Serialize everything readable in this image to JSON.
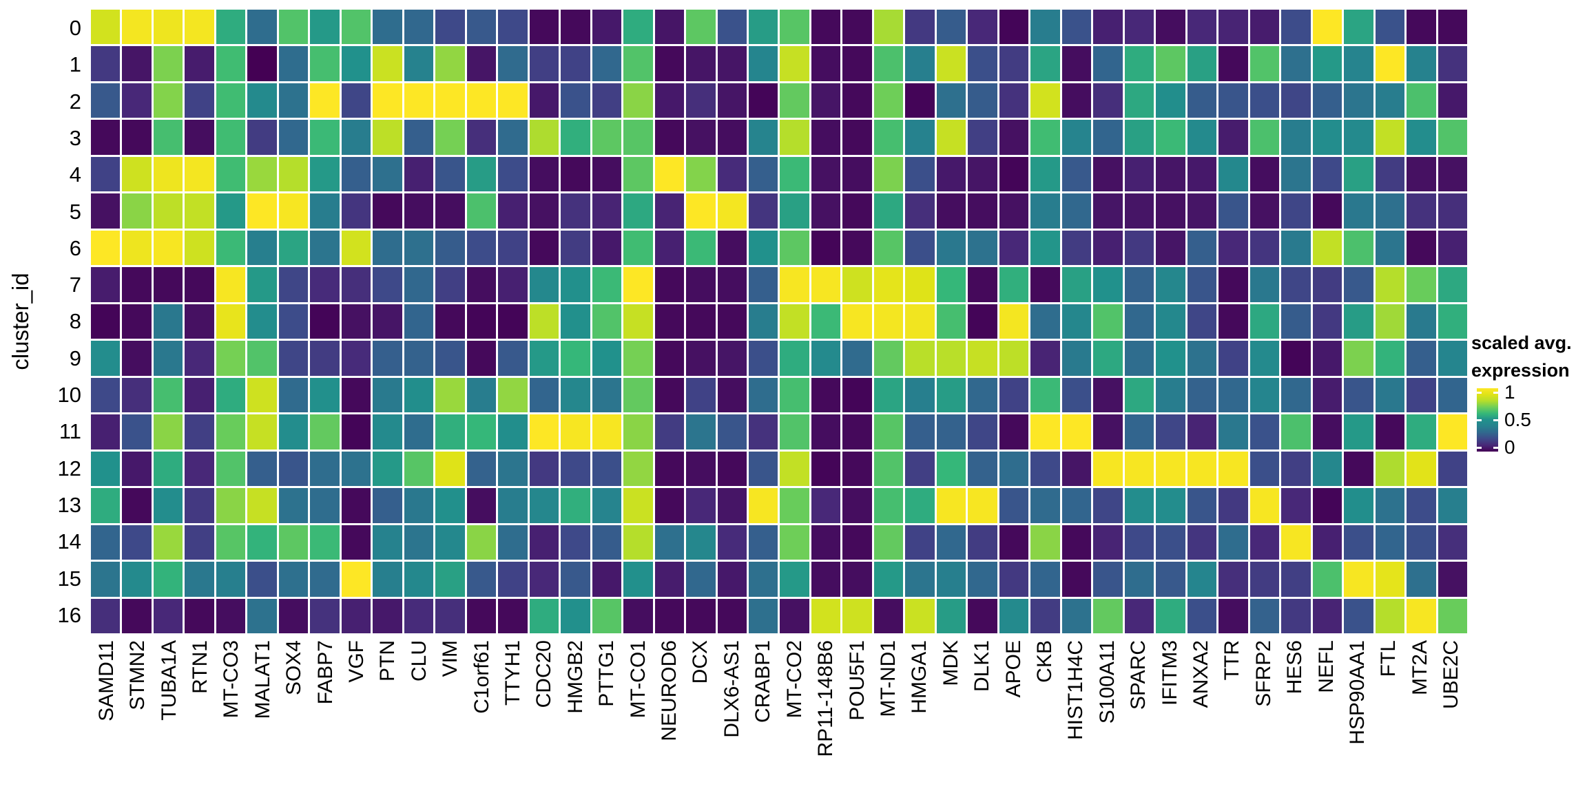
{
  "y_axis": {
    "title": "cluster_id",
    "ticks": [
      "0",
      "1",
      "2",
      "3",
      "4",
      "5",
      "6",
      "7",
      "8",
      "9",
      "10",
      "11",
      "12",
      "13",
      "14",
      "15",
      "16"
    ]
  },
  "x_axis": {
    "ticks": [
      "SAMD11",
      "STMN2",
      "TUBA1A",
      "RTN1",
      "MT-CO3",
      "MALAT1",
      "SOX4",
      "FABP7",
      "VGF",
      "PTN",
      "CLU",
      "VIM",
      "C1orf61",
      "TTYH1",
      "CDC20",
      "HMGB2",
      "PTTG1",
      "MT-CO1",
      "NEUROD6",
      "DCX",
      "DLX6-AS1",
      "CRABP1",
      "MT-CO2",
      "RP11-148B6",
      "POU5F1",
      "MT-ND1",
      "HMGA1",
      "MDK",
      "DLK1",
      "APOE",
      "CKB",
      "HIST1H4C",
      "S100A11",
      "SPARC",
      "IFITM3",
      "ANXA2",
      "TTR",
      "SFRP2",
      "HES6",
      "NEFL",
      "HSP90AA1",
      "FTL",
      "MT2A",
      "UBE2C"
    ]
  },
  "legend": {
    "title_line1": "scaled avg.",
    "title_line2": "expression",
    "ticks": [
      "1",
      "0.5",
      "0"
    ],
    "tick_positions": [
      0.06,
      0.5,
      0.94
    ]
  },
  "colors": {
    "background": "#ffffff",
    "text": "#000000",
    "gridline": "#ffffff",
    "viridis_stops": [
      "#440154",
      "#482878",
      "#3e4989",
      "#31688e",
      "#26828e",
      "#21918c",
      "#35b779",
      "#6ece58",
      "#b5de2b",
      "#dfe318",
      "#fde725"
    ]
  },
  "chart_data": {
    "type": "heatmap",
    "title": "",
    "xlabel": "",
    "ylabel": "cluster_id",
    "value_name": "scaled avg. expression",
    "colormap": "viridis",
    "vmin": 0,
    "vmax": 1,
    "x": [
      "SAMD11",
      "STMN2",
      "TUBA1A",
      "RTN1",
      "MT-CO3",
      "MALAT1",
      "SOX4",
      "FABP7",
      "VGF",
      "PTN",
      "CLU",
      "VIM",
      "C1orf61",
      "TTYH1",
      "CDC20",
      "HMGB2",
      "PTTG1",
      "MT-CO1",
      "NEUROD6",
      "DCX",
      "DLX6-AS1",
      "CRABP1",
      "MT-CO2",
      "RP11-148B6",
      "POU5F1",
      "MT-ND1",
      "HMGA1",
      "MDK",
      "DLK1",
      "APOE",
      "CKB",
      "HIST1H4C",
      "S100A11",
      "SPARC",
      "IFITM3",
      "ANXA2",
      "TTR",
      "SFRP2",
      "HES6",
      "NEFL",
      "HSP90AA1",
      "FTL",
      "MT2A",
      "UBE2C"
    ],
    "y": [
      "0",
      "1",
      "2",
      "3",
      "4",
      "5",
      "6",
      "7",
      "8",
      "9",
      "10",
      "11",
      "12",
      "13",
      "14",
      "15",
      "16"
    ],
    "values": [
      [
        0.87,
        0.97,
        0.95,
        0.97,
        0.57,
        0.32,
        0.65,
        0.52,
        0.65,
        0.32,
        0.3,
        0.2,
        0.25,
        0.2,
        0.02,
        0.02,
        0.06,
        0.57,
        0.05,
        0.67,
        0.23,
        0.53,
        0.66,
        0.02,
        0.02,
        0.78,
        0.15,
        0.26,
        0.1,
        0.01,
        0.38,
        0.23,
        0.08,
        0.1,
        0.03,
        0.1,
        0.09,
        0.07,
        0.21,
        1.0,
        0.55,
        0.23,
        0.02,
        0.02
      ],
      [
        0.15,
        0.05,
        0.72,
        0.07,
        0.62,
        0.0,
        0.32,
        0.63,
        0.5,
        0.85,
        0.4,
        0.75,
        0.05,
        0.31,
        0.17,
        0.18,
        0.3,
        0.65,
        0.02,
        0.05,
        0.05,
        0.42,
        0.84,
        0.03,
        0.02,
        0.64,
        0.39,
        0.85,
        0.22,
        0.16,
        0.55,
        0.03,
        0.29,
        0.57,
        0.67,
        0.54,
        0.02,
        0.65,
        0.33,
        0.52,
        0.41,
        1.0,
        0.4,
        0.13
      ],
      [
        0.25,
        0.1,
        0.73,
        0.18,
        0.62,
        0.45,
        0.34,
        1.0,
        0.19,
        1.0,
        1.0,
        1.0,
        1.0,
        1.0,
        0.06,
        0.23,
        0.17,
        0.74,
        0.06,
        0.12,
        0.05,
        0.01,
        0.68,
        0.05,
        0.02,
        0.7,
        0.01,
        0.33,
        0.26,
        0.13,
        0.87,
        0.03,
        0.12,
        0.56,
        0.48,
        0.26,
        0.24,
        0.22,
        0.19,
        0.27,
        0.35,
        0.38,
        0.64,
        0.06
      ],
      [
        0.02,
        0.02,
        0.63,
        0.03,
        0.62,
        0.16,
        0.3,
        0.61,
        0.38,
        0.82,
        0.27,
        0.71,
        0.12,
        0.31,
        0.79,
        0.58,
        0.67,
        0.66,
        0.02,
        0.04,
        0.03,
        0.41,
        0.8,
        0.03,
        0.02,
        0.63,
        0.4,
        0.84,
        0.17,
        0.04,
        0.62,
        0.41,
        0.29,
        0.54,
        0.61,
        0.45,
        0.07,
        0.64,
        0.38,
        0.47,
        0.45,
        0.83,
        0.47,
        0.65
      ],
      [
        0.18,
        0.86,
        0.95,
        0.97,
        0.62,
        0.76,
        0.8,
        0.52,
        0.27,
        0.33,
        0.08,
        0.24,
        0.53,
        0.21,
        0.03,
        0.02,
        0.03,
        0.67,
        1.0,
        0.73,
        0.11,
        0.27,
        0.61,
        0.04,
        0.03,
        0.72,
        0.22,
        0.06,
        0.05,
        0.01,
        0.52,
        0.25,
        0.04,
        0.08,
        0.05,
        0.06,
        0.44,
        0.03,
        0.35,
        0.2,
        0.54,
        0.16,
        0.04,
        0.04
      ],
      [
        0.04,
        0.74,
        0.82,
        0.83,
        0.52,
        1.0,
        0.98,
        0.38,
        0.14,
        0.02,
        0.03,
        0.03,
        0.64,
        0.08,
        0.04,
        0.13,
        0.09,
        0.56,
        0.09,
        1.0,
        0.97,
        0.14,
        0.54,
        0.04,
        0.02,
        0.56,
        0.12,
        0.03,
        0.03,
        0.04,
        0.38,
        0.3,
        0.05,
        0.05,
        0.04,
        0.05,
        0.24,
        0.04,
        0.19,
        0.02,
        0.36,
        0.33,
        0.13,
        0.12
      ],
      [
        1.0,
        0.95,
        0.98,
        0.86,
        0.61,
        0.39,
        0.55,
        0.35,
        0.87,
        0.32,
        0.33,
        0.26,
        0.21,
        0.18,
        0.02,
        0.16,
        0.06,
        0.62,
        0.08,
        0.61,
        0.03,
        0.5,
        0.67,
        0.01,
        0.02,
        0.66,
        0.22,
        0.36,
        0.34,
        0.1,
        0.51,
        0.16,
        0.08,
        0.15,
        0.05,
        0.27,
        0.1,
        0.14,
        0.37,
        0.83,
        0.64,
        0.35,
        0.02,
        0.08
      ],
      [
        0.07,
        0.02,
        0.02,
        0.02,
        0.98,
        0.52,
        0.19,
        0.11,
        0.12,
        0.2,
        0.3,
        0.17,
        0.03,
        0.08,
        0.44,
        0.49,
        0.61,
        1.0,
        0.02,
        0.03,
        0.03,
        0.27,
        0.98,
        0.98,
        0.86,
        0.92,
        0.9,
        0.6,
        0.02,
        0.58,
        0.02,
        0.54,
        0.5,
        0.28,
        0.43,
        0.24,
        0.02,
        0.36,
        0.19,
        0.16,
        0.25,
        0.8,
        0.69,
        0.56
      ],
      [
        0.01,
        0.02,
        0.36,
        0.04,
        0.93,
        0.47,
        0.21,
        0.01,
        0.04,
        0.05,
        0.29,
        0.02,
        0.01,
        0.01,
        0.82,
        0.49,
        0.65,
        0.84,
        0.02,
        0.02,
        0.02,
        0.38,
        0.83,
        0.61,
        0.98,
        0.97,
        0.96,
        0.63,
        0.01,
        0.97,
        0.32,
        0.43,
        0.65,
        0.3,
        0.44,
        0.19,
        0.02,
        0.56,
        0.26,
        0.15,
        0.53,
        0.77,
        0.37,
        0.58
      ],
      [
        0.47,
        0.03,
        0.36,
        0.1,
        0.71,
        0.65,
        0.19,
        0.16,
        0.11,
        0.27,
        0.28,
        0.24,
        0.02,
        0.25,
        0.52,
        0.6,
        0.5,
        0.71,
        0.02,
        0.04,
        0.05,
        0.22,
        0.57,
        0.45,
        0.31,
        0.68,
        0.81,
        0.81,
        0.84,
        0.82,
        0.09,
        0.37,
        0.56,
        0.32,
        0.5,
        0.34,
        0.18,
        0.45,
        0.01,
        0.06,
        0.72,
        0.59,
        0.27,
        0.42
      ],
      [
        0.2,
        0.12,
        0.63,
        0.08,
        0.57,
        0.86,
        0.31,
        0.49,
        0.02,
        0.37,
        0.48,
        0.76,
        0.38,
        0.75,
        0.29,
        0.43,
        0.35,
        0.68,
        0.02,
        0.18,
        0.03,
        0.32,
        0.63,
        0.02,
        0.01,
        0.55,
        0.39,
        0.53,
        0.3,
        0.18,
        0.61,
        0.22,
        0.04,
        0.56,
        0.38,
        0.28,
        0.3,
        0.42,
        0.3,
        0.07,
        0.24,
        0.36,
        0.18,
        0.29
      ],
      [
        0.08,
        0.23,
        0.74,
        0.17,
        0.69,
        0.84,
        0.47,
        0.68,
        0.01,
        0.45,
        0.32,
        0.58,
        0.6,
        0.48,
        1.0,
        0.98,
        0.98,
        0.74,
        0.16,
        0.35,
        0.24,
        0.13,
        0.65,
        0.03,
        0.02,
        0.66,
        0.27,
        0.28,
        0.19,
        0.02,
        1.0,
        1.0,
        0.04,
        0.29,
        0.19,
        0.09,
        0.36,
        0.23,
        0.64,
        0.03,
        0.52,
        0.02,
        0.57,
        1.0
      ],
      [
        0.5,
        0.06,
        0.57,
        0.1,
        0.65,
        0.27,
        0.24,
        0.32,
        0.34,
        0.52,
        0.66,
        0.9,
        0.28,
        0.35,
        0.15,
        0.2,
        0.22,
        0.75,
        0.02,
        0.03,
        0.02,
        0.24,
        0.83,
        0.01,
        0.02,
        0.65,
        0.17,
        0.6,
        0.28,
        0.32,
        0.2,
        0.05,
        0.98,
        0.98,
        0.98,
        0.98,
        0.98,
        0.22,
        0.17,
        0.43,
        0.02,
        0.79,
        0.91,
        0.18
      ],
      [
        0.57,
        0.02,
        0.47,
        0.15,
        0.74,
        0.84,
        0.34,
        0.32,
        0.02,
        0.27,
        0.36,
        0.49,
        0.03,
        0.38,
        0.43,
        0.58,
        0.41,
        0.85,
        0.02,
        0.1,
        0.05,
        0.98,
        0.69,
        0.1,
        0.03,
        0.63,
        0.57,
        0.98,
        0.98,
        0.24,
        0.31,
        0.29,
        0.19,
        0.47,
        0.47,
        0.24,
        0.15,
        0.98,
        0.1,
        0.01,
        0.48,
        0.34,
        0.21,
        0.39
      ],
      [
        0.29,
        0.2,
        0.76,
        0.17,
        0.66,
        0.59,
        0.67,
        0.61,
        0.02,
        0.4,
        0.35,
        0.44,
        0.74,
        0.32,
        0.08,
        0.2,
        0.26,
        0.8,
        0.33,
        0.43,
        0.11,
        0.27,
        0.7,
        0.03,
        0.02,
        0.68,
        0.18,
        0.3,
        0.16,
        0.02,
        0.74,
        0.02,
        0.09,
        0.2,
        0.22,
        0.14,
        0.32,
        0.1,
        0.98,
        0.08,
        0.22,
        0.29,
        0.22,
        0.12
      ],
      [
        0.35,
        0.45,
        0.59,
        0.36,
        0.39,
        0.22,
        0.33,
        0.31,
        1.0,
        0.39,
        0.44,
        0.54,
        0.25,
        0.18,
        0.1,
        0.25,
        0.06,
        0.49,
        0.07,
        0.3,
        0.06,
        0.33,
        0.52,
        0.03,
        0.03,
        0.52,
        0.35,
        0.39,
        0.3,
        0.15,
        0.29,
        0.02,
        0.24,
        0.32,
        0.25,
        0.42,
        0.12,
        0.16,
        0.17,
        0.64,
        0.98,
        0.92,
        0.33,
        0.04
      ],
      [
        0.12,
        0.02,
        0.1,
        0.02,
        0.03,
        0.34,
        0.03,
        0.13,
        0.08,
        0.06,
        0.11,
        0.12,
        0.02,
        0.02,
        0.57,
        0.49,
        0.66,
        0.03,
        0.02,
        0.02,
        0.02,
        0.33,
        0.04,
        0.87,
        0.86,
        0.03,
        0.85,
        0.53,
        0.02,
        0.45,
        0.16,
        0.34,
        0.68,
        0.1,
        0.57,
        0.22,
        0.03,
        0.28,
        0.15,
        0.09,
        0.23,
        0.8,
        0.98,
        0.69
      ]
    ],
    "legend_title": "scaled avg. expression",
    "legend_ticks": [
      1,
      0.5,
      0
    ],
    "grid": false,
    "legend_position": "right"
  }
}
